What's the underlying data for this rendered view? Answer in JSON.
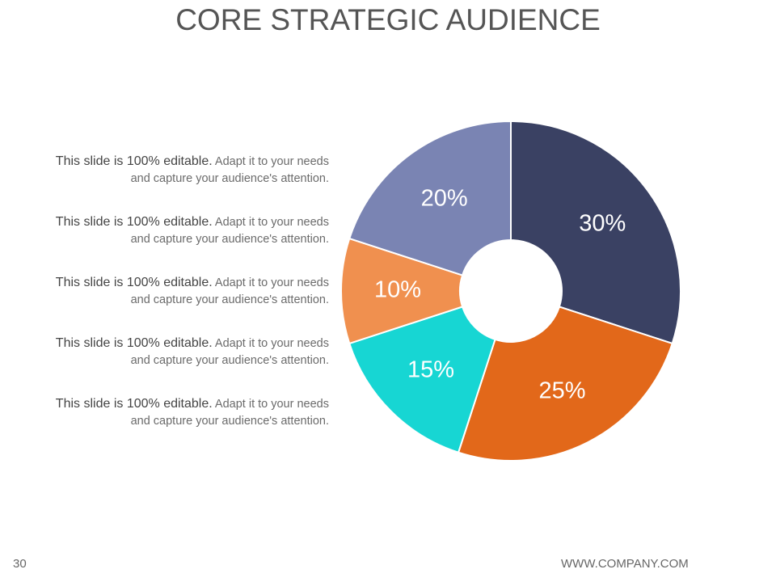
{
  "chart_data": {
    "type": "donut",
    "title": "CORE STRATEGIC AUDIENCE",
    "values": [
      30,
      25,
      15,
      10,
      20
    ],
    "value_labels": [
      "30%",
      "25%",
      "15%",
      "10%",
      "20%"
    ],
    "colors": [
      "#3a4163",
      "#e2681a",
      "#17d6d3",
      "#f0904f",
      "#7a84b3"
    ]
  },
  "text_items": [
    {
      "lead": "This slide is 100% editable.",
      "body": "Adapt it to your needs and capture your audience's attention."
    },
    {
      "lead": "This slide is 100% editable.",
      "body": "Adapt it to your needs and capture your audience's attention."
    },
    {
      "lead": "This slide is 100% editable.",
      "body": "Adapt it to your needs and capture your audience's attention."
    },
    {
      "lead": "This slide is 100% editable.",
      "body": "Adapt it to your needs and capture your audience's attention."
    },
    {
      "lead": "This slide is 100% editable.",
      "body": "Adapt it to your needs and capture your audience's attention."
    }
  ],
  "footer": {
    "page_number": "30",
    "website": "WWW.COMPANY.COM"
  }
}
